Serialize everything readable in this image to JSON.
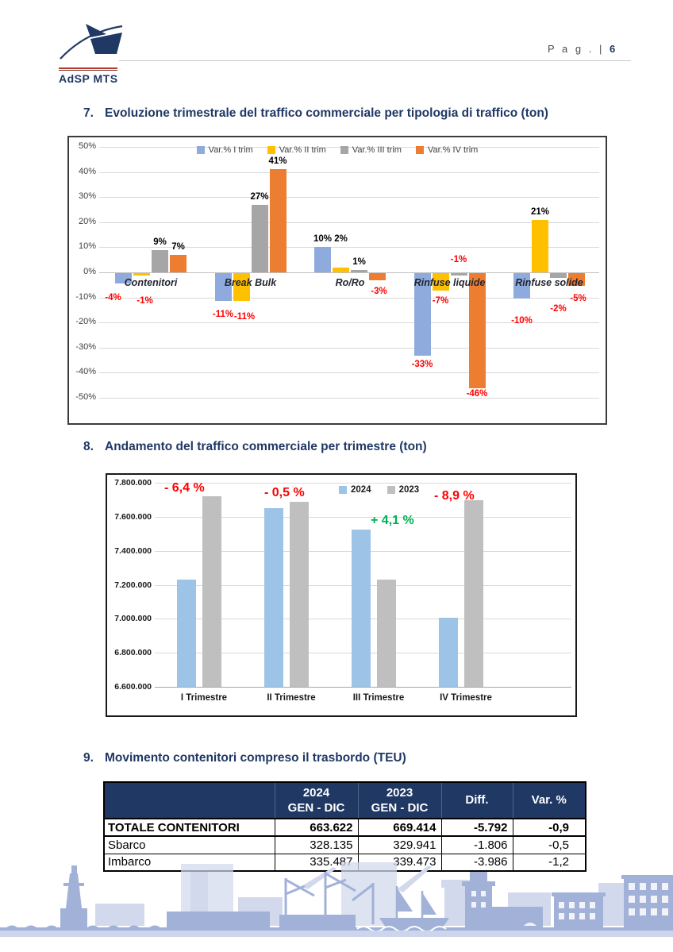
{
  "page": {
    "logo_text": "AdSP MTS",
    "page_label": "P a g . |",
    "page_number": "6"
  },
  "sections": {
    "s7": {
      "number": "7.",
      "title": "Evoluzione trimestrale del traffico commerciale per tipologia di traffico (ton)"
    },
    "s8": {
      "number": "8.",
      "title": "Andamento del traffico commerciale per trimestre (ton)"
    },
    "s9": {
      "number": "9.",
      "title": "Movimento contenitori compreso il trasbordo (TEU)"
    }
  },
  "chart_data": [
    {
      "id": "quarterly-variation-by-traffic-type",
      "type": "bar",
      "title": "Evoluzione trimestrale del traffico commerciale per tipologia di traffico (ton)",
      "xlabel": "",
      "ylabel": "",
      "categories": [
        "Contenitori",
        "Break Bulk",
        "Ro/Ro",
        "Rinfuse liquide",
        "Rinfuse solide"
      ],
      "series": [
        {
          "name": "Var.% I trim",
          "color": "#8faadc",
          "values": [
            -4,
            -11,
            10,
            -33,
            -10
          ],
          "labels": [
            "-4%",
            "-11%",
            "10%",
            "-33%",
            "-10%"
          ],
          "label_dx": [
            -13,
            0,
            0,
            0,
            0
          ],
          "label_dy": [
            11,
            10,
            0,
            4,
            21
          ]
        },
        {
          "name": "Var.% II trim",
          "color": "#ffc000",
          "values": [
            -1,
            -11,
            2,
            -7,
            21
          ],
          "labels": [
            "-1%",
            "-11%",
            "2%",
            "-7%",
            "21%"
          ],
          "label_dx": [
            4,
            4,
            0,
            0,
            0
          ],
          "label_dy": [
            25,
            13,
            -26,
            6,
            0
          ]
        },
        {
          "name": "Var.% III trim",
          "color": "#a6a6a6",
          "values": [
            9,
            27,
            1,
            -1,
            -2
          ],
          "labels": [
            "9%",
            "27%",
            "1%",
            "-1%",
            "-2%"
          ],
          "label_dx": [
            0,
            0,
            0,
            0,
            0
          ],
          "label_dy": [
            0,
            0,
            0,
            -27,
            32
          ]
        },
        {
          "name": "Var.% IV trim",
          "color": "#ed7d31",
          "values": [
            7,
            41,
            -3,
            -46,
            -5
          ],
          "labels": [
            "7%",
            "41%",
            "-3%",
            "-46%",
            "-5%"
          ],
          "label_dx": [
            0,
            0,
            2,
            0,
            2
          ],
          "label_dy": [
            0,
            0,
            7,
            0,
            9
          ]
        }
      ],
      "ylim": [
        -50,
        50
      ],
      "ytick_step": 10,
      "ytick_suffix": "%",
      "grid": true,
      "legend_position": "top",
      "positive_label_color": "#000000",
      "negative_label_color": "#ff0000"
    },
    {
      "id": "quarterly-traffic-2024-vs-2023",
      "type": "bar",
      "title": "Andamento del traffico commerciale per trimestre (ton)",
      "xlabel": "",
      "ylabel": "",
      "categories": [
        "I Trimestre",
        "II Trimestre",
        "III Trimestre",
        "IV Trimestre"
      ],
      "series": [
        {
          "name": "2024",
          "color": "#9dc3e6",
          "values": [
            7230000,
            7650000,
            7525000,
            7005000
          ]
        },
        {
          "name": "2023",
          "color": "#bfbfbf",
          "values": [
            7720000,
            7690000,
            7230000,
            7695000
          ]
        }
      ],
      "ylim": [
        6600000,
        7800000
      ],
      "ytick_step": 200000,
      "grid": true,
      "legend_position": "top-right",
      "annotations": [
        {
          "text": "- 6,4 %",
          "color": "#ff0000",
          "x": 72,
          "y": 8
        },
        {
          "text": "- 0,5 %",
          "color": "#ff0000",
          "x": 198,
          "y": 14
        },
        {
          "text": "+ 4,1 %",
          "color": "#00b050",
          "x": 332,
          "y": 49
        },
        {
          "text": "- 8,9 %",
          "color": "#ff0000",
          "x": 412,
          "y": 18
        }
      ]
    }
  ],
  "table9": {
    "columns": [
      {
        "line1": "",
        "line2": ""
      },
      {
        "line1": "2024",
        "line2": "GEN - DIC"
      },
      {
        "line1": "2023",
        "line2": "GEN - DIC"
      },
      {
        "line1": "Diff.",
        "line2": ""
      },
      {
        "line1": "Var. %",
        "line2": ""
      }
    ],
    "rows": [
      {
        "label": "TOTALE CONTENITORI",
        "y2024": "663.622",
        "y2023": "669.414",
        "diff": "-5.792",
        "var_pct": "-0,9"
      },
      {
        "label": "Sbarco",
        "y2024": "328.135",
        "y2023": "329.941",
        "diff": "-1.806",
        "var_pct": "-0,5"
      },
      {
        "label": "Imbarco",
        "y2024": "335.487",
        "y2023": "339.473",
        "diff": "-3.986",
        "var_pct": "-1,2"
      }
    ],
    "header_bg": "#1f3864"
  },
  "colors": {
    "title_navy": "#1f3864",
    "negative_red": "#ff0000",
    "positive_green": "#00b050",
    "skyline_medium": "#a2b1d8",
    "skyline_light": "#d2d9ec"
  }
}
